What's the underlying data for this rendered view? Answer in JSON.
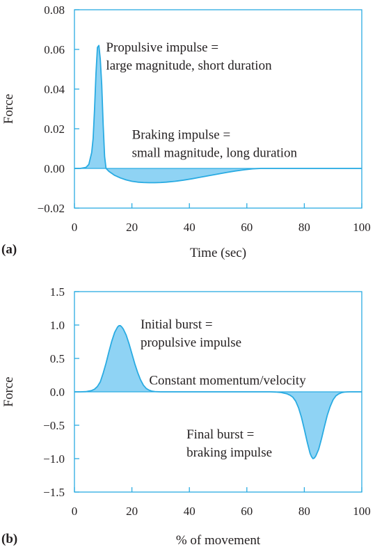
{
  "chart_data": [
    {
      "type": "line",
      "panel_label": "(a)",
      "xlabel": "Time (sec)",
      "ylabel": "Force",
      "xlim": [
        0,
        100
      ],
      "ylim": [
        -0.02,
        0.08
      ],
      "xticks": [
        0,
        20,
        40,
        60,
        80,
        100
      ],
      "xtick_labels": [
        "0",
        "20",
        "40",
        "60",
        "80",
        "100"
      ],
      "yticks": [
        -0.02,
        0.0,
        0.02,
        0.04,
        0.06,
        0.08
      ],
      "ytick_labels": [
        "−0.02",
        "0.00",
        "0.02",
        "0.04",
        "0.06",
        "0.08"
      ],
      "grid": false,
      "fill_to_zero": true,
      "x": [
        0,
        2,
        4,
        5,
        6,
        6.5,
        7,
        7.5,
        8,
        8.5,
        9,
        9.5,
        10,
        10.5,
        11,
        12,
        13,
        14,
        16,
        18,
        20,
        22,
        24,
        26,
        28,
        30,
        32,
        35,
        38,
        41,
        44,
        47,
        50,
        53,
        56,
        59,
        62,
        65,
        70,
        80,
        90,
        100
      ],
      "y": [
        0,
        0,
        0.0005,
        0.002,
        0.008,
        0.015,
        0.03,
        0.048,
        0.061,
        0.062,
        0.055,
        0.042,
        0.022,
        0.006,
        0,
        -0.0015,
        -0.0025,
        -0.0035,
        -0.0048,
        -0.0058,
        -0.0065,
        -0.0069,
        -0.0071,
        -0.0072,
        -0.0072,
        -0.0071,
        -0.0069,
        -0.0065,
        -0.0059,
        -0.0052,
        -0.0044,
        -0.0036,
        -0.0028,
        -0.002,
        -0.0013,
        -0.0007,
        -0.0002,
        0,
        0,
        0,
        0,
        0
      ],
      "annotations": [
        {
          "lines": [
            "Propulsive impulse =",
            "large magnitude, short duration"
          ],
          "x": 11,
          "y": 0.059
        },
        {
          "lines": [
            "Braking impulse =",
            "small magnitude, long duration"
          ],
          "x": 20,
          "y": 0.015
        }
      ]
    },
    {
      "type": "line",
      "panel_label": "(b)",
      "xlabel": "% of movement",
      "ylabel": "Force",
      "xlim": [
        0,
        100
      ],
      "ylim": [
        -1.5,
        1.5
      ],
      "xticks": [
        0,
        20,
        40,
        60,
        80,
        100
      ],
      "xtick_labels": [
        "0",
        "20",
        "40",
        "60",
        "80",
        "100"
      ],
      "yticks": [
        -1.5,
        -1.0,
        -0.5,
        0.0,
        0.5,
        1.0,
        1.5
      ],
      "ytick_labels": [
        "−1.5",
        "−1.0",
        "−0.5",
        "0.0",
        "0.5",
        "1.0",
        "1.5"
      ],
      "grid": false,
      "fill_to_zero": true,
      "x": [
        0,
        2,
        4,
        6,
        7,
        8,
        9,
        10,
        11,
        12,
        13,
        14,
        15,
        15.5,
        16,
        16.5,
        17,
        18,
        19,
        20,
        21,
        22,
        23,
        24,
        25,
        26,
        27,
        28,
        30,
        40,
        50,
        60,
        68,
        70,
        72,
        74,
        75,
        76,
        77,
        78,
        79,
        80,
        81,
        82,
        82.5,
        83,
        83.5,
        84,
        85,
        86,
        87,
        88,
        89,
        90,
        91,
        92,
        93,
        94,
        95,
        96,
        98,
        100
      ],
      "y": [
        0,
        0,
        0.003,
        0.02,
        0.04,
        0.08,
        0.15,
        0.28,
        0.43,
        0.6,
        0.76,
        0.89,
        0.97,
        0.99,
        0.99,
        0.97,
        0.94,
        0.85,
        0.72,
        0.57,
        0.42,
        0.29,
        0.18,
        0.1,
        0.05,
        0.025,
        0.01,
        0.004,
        0,
        0,
        0,
        0,
        0,
        -0.003,
        -0.01,
        -0.03,
        -0.05,
        -0.08,
        -0.14,
        -0.24,
        -0.38,
        -0.56,
        -0.75,
        -0.92,
        -0.97,
        -1.0,
        -0.99,
        -0.96,
        -0.86,
        -0.7,
        -0.52,
        -0.35,
        -0.22,
        -0.12,
        -0.06,
        -0.03,
        -0.012,
        -0.004,
        -0.001,
        0,
        0,
        0
      ],
      "annotations": [
        {
          "lines": [
            "Initial burst =",
            "propulsive impulse"
          ],
          "x": 23,
          "y": 0.95
        },
        {
          "lines": [
            "Constant momentum/velocity"
          ],
          "x": 26,
          "y": 0.11
        },
        {
          "lines": [
            "Final burst =",
            "braking impulse"
          ],
          "x": 39,
          "y": -0.7
        }
      ]
    }
  ]
}
